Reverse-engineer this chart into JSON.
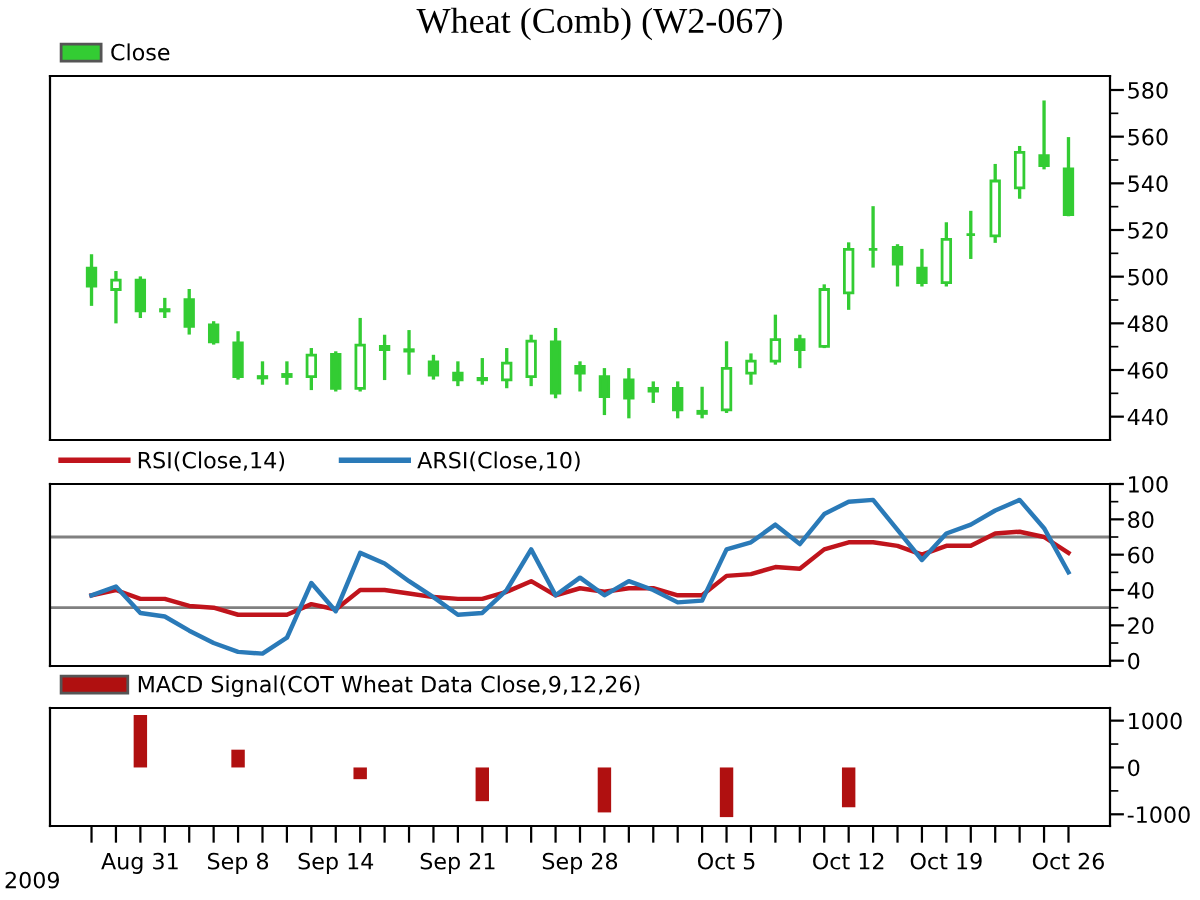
{
  "chart_data": [
    {
      "type": "candlestick",
      "title": "Wheat (Comb) (W2-067)",
      "legend": "top left",
      "tick_labels": "y",
      "ylim": [
        430,
        586
      ],
      "yticks": [
        440,
        460,
        480,
        500,
        520,
        540,
        560,
        580
      ],
      "series": [
        {
          "name": "Close",
          "color": "#33cc33",
          "ohlc": [
            [
              503.7,
              508.9,
              488.2,
              496.0
            ],
            [
              494.5,
              501.7,
              480.7,
              498.5
            ],
            [
              498.5,
              499.4,
              483.0,
              485.3
            ],
            [
              485.9,
              490.2,
              483.0,
              485.3
            ],
            [
              490.2,
              494.0,
              475.9,
              478.7
            ],
            [
              479.3,
              480.2,
              471.6,
              472.1
            ],
            [
              471.6,
              475.9,
              456.6,
              457.2
            ],
            [
              457.2,
              463.0,
              454.4,
              456.6
            ],
            [
              457.2,
              463.0,
              454.4,
              458.1
            ],
            [
              457.2,
              468.7,
              452.1,
              466.4
            ],
            [
              466.7,
              467.3,
              451.5,
              452.1
            ],
            [
              452.1,
              481.6,
              451.5,
              470.7
            ],
            [
              470.1,
              474.4,
              456.4,
              468.7
            ],
            [
              468.7,
              476.4,
              458.7,
              468.1
            ],
            [
              463.5,
              465.8,
              456.6,
              457.8
            ],
            [
              458.7,
              463.0,
              453.8,
              455.8
            ],
            [
              456.4,
              464.4,
              454.4,
              455.8
            ],
            [
              455.8,
              468.7,
              452.9,
              462.9
            ],
            [
              457.2,
              474.4,
              453.8,
              472.4
            ],
            [
              472.1,
              477.3,
              448.6,
              450.1
            ],
            [
              461.5,
              463.0,
              451.5,
              458.7
            ],
            [
              457.2,
              460.1,
              441.4,
              448.6
            ],
            [
              455.8,
              460.1,
              440.0,
              448.0
            ],
            [
              452.1,
              454.4,
              446.6,
              450.9
            ],
            [
              452.1,
              454.4,
              440.0,
              442.9
            ],
            [
              441.4,
              452.1,
              440.0,
              442.3
            ],
            [
              442.9,
              471.6,
              442.3,
              460.7
            ],
            [
              458.7,
              466.4,
              454.4,
              463.8
            ],
            [
              463.8,
              483.0,
              463.0,
              473.0
            ],
            [
              473.0,
              474.4,
              461.5,
              468.7
            ],
            [
              470.1,
              496.0,
              470.1,
              494.5
            ],
            [
              493.1,
              514.0,
              486.5,
              511.7
            ],
            [
              511.7,
              529.5,
              504.6,
              511.7
            ],
            [
              512.6,
              513.2,
              496.5,
              505.4
            ],
            [
              503.7,
              511.2,
              496.5,
              497.4
            ],
            [
              497.4,
              522.6,
              496.5,
              516.0
            ],
            [
              518.0,
              527.5,
              508.3,
              518.0
            ],
            [
              517.5,
              547.6,
              515.2,
              541.0
            ],
            [
              538.1,
              555.3,
              534.1,
              553.3
            ],
            [
              551.9,
              574.8,
              546.7,
              547.6
            ],
            [
              546.2,
              559.1,
              526.6,
              526.6
            ]
          ]
        }
      ]
    },
    {
      "type": "line",
      "legend": "top left",
      "tick_labels": "y",
      "ylim": [
        -3,
        100
      ],
      "yticks": [
        0,
        20,
        40,
        60,
        80,
        100
      ],
      "ref_lines": [
        {
          "axis": "y",
          "value": 70,
          "color": "#808080"
        },
        {
          "axis": "y",
          "value": 30,
          "color": "#808080"
        }
      ],
      "series": [
        {
          "name": "RSI(Close,14)",
          "color": "#c0141c",
          "values": [
            37,
            40,
            35,
            35,
            31,
            30,
            26,
            26,
            26,
            32,
            29,
            40,
            40,
            38,
            36,
            35,
            35,
            39,
            45,
            37,
            41,
            39,
            41,
            41,
            37,
            37,
            48,
            49,
            53,
            52,
            63,
            67,
            67,
            65,
            60,
            65,
            65,
            72,
            73,
            70,
            61
          ]
        },
        {
          "name": "ARSI(Close,10)",
          "color": "#2a7ab8",
          "values": [
            37,
            42,
            27,
            25,
            17,
            10,
            5,
            4,
            13,
            44,
            28,
            61,
            55,
            45,
            36,
            26,
            27,
            40,
            63,
            37,
            47,
            37,
            45,
            40,
            33,
            34,
            63,
            67,
            77,
            66,
            83,
            90,
            91,
            74,
            57,
            72,
            77,
            85,
            91,
            75,
            50
          ]
        }
      ]
    },
    {
      "type": "bar",
      "legend": "top left",
      "categories": [
        null,
        null,
        "Aug 31",
        null,
        null,
        null,
        "Sep 8",
        null,
        null,
        null,
        "Sep 14",
        null,
        null,
        null,
        null,
        "Sep 21",
        null,
        null,
        null,
        null,
        "Sep 28",
        null,
        null,
        null,
        null,
        null,
        "Oct 5",
        null,
        null,
        null,
        null,
        "Oct 12",
        null,
        null,
        null,
        "Oct 19",
        null,
        null,
        null,
        null,
        "Oct 26"
      ],
      "ylim": [
        -1250,
        1270
      ],
      "yticks": [
        {
          "value": -1000,
          "label": "-1000"
        },
        0,
        1000
      ],
      "annotations": [
        "2009"
      ],
      "series": [
        {
          "name": "MACD Signal(COT Wheat Data Close,9,12,26)",
          "color": "#b01010",
          "values": [
            null,
            null,
            1120,
            null,
            null,
            null,
            380,
            null,
            null,
            null,
            null,
            -250,
            null,
            null,
            null,
            null,
            -720,
            null,
            null,
            null,
            null,
            -960,
            null,
            null,
            null,
            null,
            -1060,
            null,
            null,
            null,
            null,
            -850,
            null,
            null,
            null,
            null,
            null,
            null,
            null,
            null,
            null
          ]
        }
      ]
    }
  ]
}
